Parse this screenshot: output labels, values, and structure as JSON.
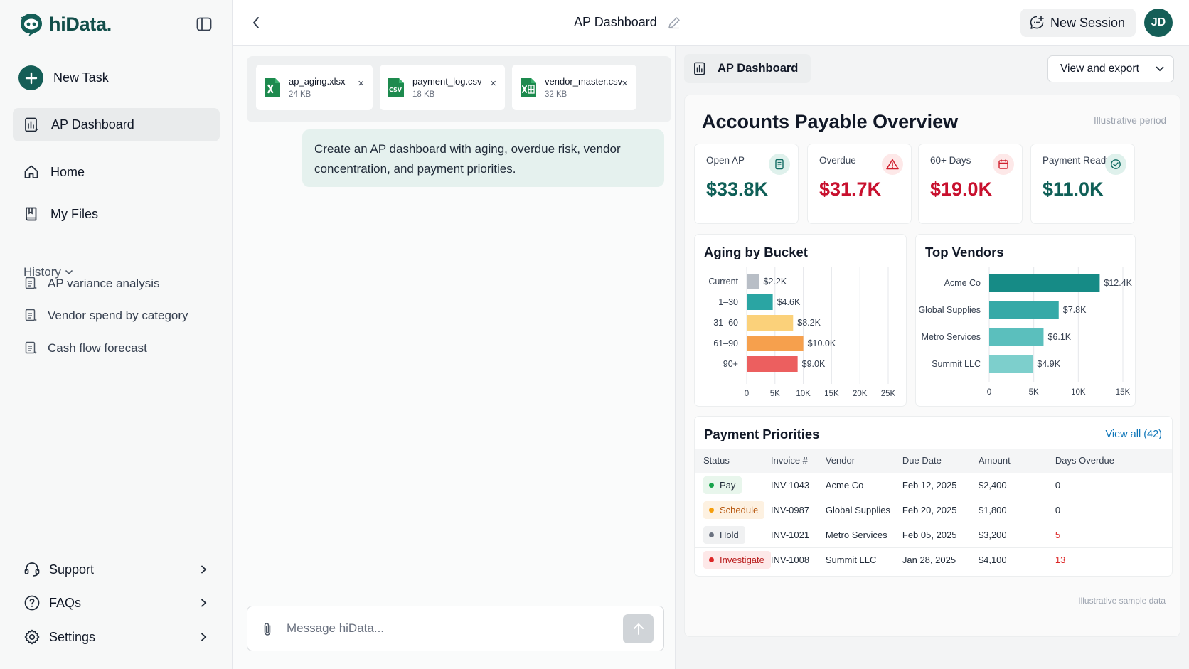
{
  "brand": {
    "name": "hiData."
  },
  "sidebar": {
    "new_task": "New Task",
    "active_item": "AP Dashboard",
    "nav": [
      {
        "label": "Home",
        "icon": "home-icon"
      },
      {
        "label": "My Files",
        "icon": "book-icon"
      }
    ],
    "history_label": "History",
    "history": [
      "AP variance analysis",
      "Vendor spend by category",
      "Cash flow forecast"
    ],
    "bottom": [
      {
        "label": "Support",
        "icon": "headset-icon"
      },
      {
        "label": "FAQs",
        "icon": "question-icon"
      },
      {
        "label": "Settings",
        "icon": "gear-icon"
      }
    ]
  },
  "header": {
    "title": "AP Dashboard",
    "new_session": "New Session",
    "avatar_initials": "JD"
  },
  "chat": {
    "attachments": [
      {
        "name": "ap_aging.xlsx",
        "size": "24 KB",
        "type": "xlsx"
      },
      {
        "name": "payment_log.csv",
        "size": "18 KB",
        "type": "csv"
      },
      {
        "name": "vendor_master.csv",
        "size": "32 KB",
        "type": "xlsx"
      }
    ],
    "csv_badge": "CSV",
    "user_message": "Create an AP dashboard with aging, overdue risk, vendor concentration, and payment priorities.",
    "composer_placeholder": "Message hiData..."
  },
  "dashboard": {
    "tab_label": "AP Dashboard",
    "view_export": "View and export",
    "title": "Accounts Payable Overview",
    "period": "Illustrative period",
    "kpis": [
      {
        "label": "Open AP",
        "value": "$33.8K",
        "color": "#0f5f57",
        "icon": "document-icon"
      },
      {
        "label": "Overdue",
        "value": "$31.7K",
        "color": "#c8102e",
        "icon": "warning-icon"
      },
      {
        "label": "60+ Days",
        "value": "$19.0K",
        "color": "#c8102e",
        "icon": "calendar-icon"
      },
      {
        "label": "Payment Ready",
        "value": "$11.0K",
        "color": "#0f5f57",
        "icon": "check-circle-icon"
      }
    ],
    "aging_title": "Aging by Bucket",
    "vendors_title": "Top Vendors",
    "payments": {
      "title": "Payment Priorities",
      "view_all": "View all (42)",
      "columns": [
        "Status",
        "Invoice #",
        "Vendor",
        "Due Date",
        "Amount",
        "Days Overdue"
      ],
      "rows": [
        {
          "status": "Pay",
          "invoice": "INV-1043",
          "vendor": "Acme Co",
          "due": "Feb 12, 2025",
          "amount": "$2,400",
          "days": "0"
        },
        {
          "status": "Schedule",
          "invoice": "INV-0987",
          "vendor": "Global Supplies",
          "due": "Feb 20, 2025",
          "amount": "$1,800",
          "days": "0"
        },
        {
          "status": "Hold",
          "invoice": "INV-1021",
          "vendor": "Metro Services",
          "due": "Feb 05, 2025",
          "amount": "$3,200",
          "days": "5"
        },
        {
          "status": "Investigate",
          "invoice": "INV-1008",
          "vendor": "Summit LLC",
          "due": "Jan 28, 2025",
          "amount": "$4,100",
          "days": "13"
        }
      ]
    },
    "footnote": "Illustrative sample data"
  },
  "colors": {
    "brand": "#155e57",
    "status_pay": "#16a34a",
    "status_schedule": "#f59e0b",
    "status_hold": "#6b7280",
    "status_investigate": "#dc2626",
    "overdue_red": "#dc2626"
  },
  "chart_data": [
    {
      "type": "bar",
      "orientation": "horizontal",
      "title": "Aging by Bucket",
      "categories": [
        "Current",
        "1–30",
        "31–60",
        "61–90",
        "90+"
      ],
      "values": [
        2.2,
        4.6,
        8.2,
        10.0,
        9.0
      ],
      "value_labels": [
        "$2.2K",
        "$4.6K",
        "$8.2K",
        "$10.0K",
        "$9.0K"
      ],
      "colors": [
        "#b8bec6",
        "#2aa5a3",
        "#fbd17a",
        "#f6a04d",
        "#ec5f5f"
      ],
      "xticks": [
        "0",
        "5K",
        "10K",
        "15K",
        "20K",
        "25K"
      ],
      "xlim": [
        0,
        25
      ],
      "grid": true
    },
    {
      "type": "bar",
      "orientation": "horizontal",
      "title": "Top Vendors",
      "categories": [
        "Acme Co",
        "Global Supplies",
        "Metro Services",
        "Summit LLC"
      ],
      "values": [
        12.4,
        7.8,
        6.1,
        4.9
      ],
      "value_labels": [
        "$12.4K",
        "$7.8K",
        "$6.1K",
        "$4.9K"
      ],
      "colors": [
        "#168b86",
        "#35a9a7",
        "#5bbfbd",
        "#7dcfcc"
      ],
      "xticks": [
        "0",
        "5K",
        "10K",
        "15K"
      ],
      "xlim": [
        0,
        15
      ],
      "grid": true
    }
  ]
}
